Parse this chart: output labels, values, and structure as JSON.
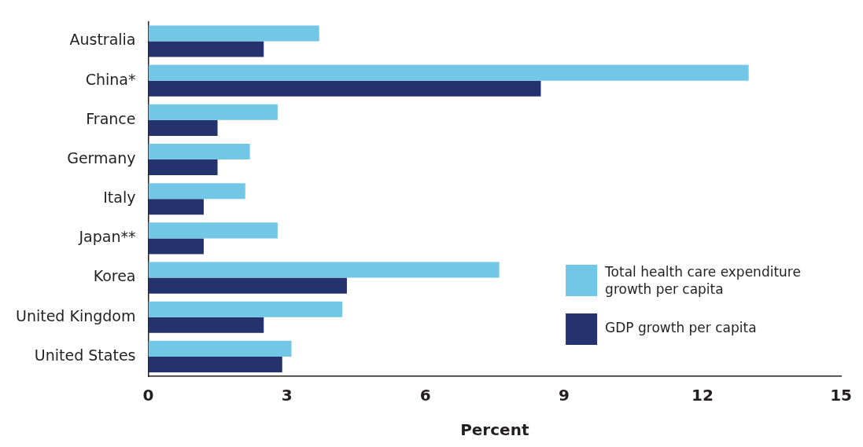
{
  "chart_data": {
    "type": "bar",
    "orientation": "horizontal",
    "xlabel": "Percent",
    "categories": [
      "Australia",
      "China*",
      "France",
      "Germany",
      "Italy",
      "Japan**",
      "Korea",
      "United Kingdom",
      "United States"
    ],
    "series": [
      {
        "name": "Total health care expenditure growth per capita",
        "color": "#72c6e6",
        "values": [
          3.7,
          13.0,
          2.8,
          2.2,
          2.1,
          2.8,
          7.6,
          4.2,
          3.1
        ]
      },
      {
        "name": "GDP growth per capita",
        "color": "#24336e",
        "values": [
          2.5,
          8.5,
          1.5,
          1.5,
          1.2,
          1.2,
          4.3,
          2.5,
          2.9
        ]
      }
    ],
    "xlim": [
      0,
      15
    ],
    "xticks": [
      0,
      3,
      6,
      9,
      12,
      15
    ],
    "grid": false,
    "legend": "bottom right"
  }
}
